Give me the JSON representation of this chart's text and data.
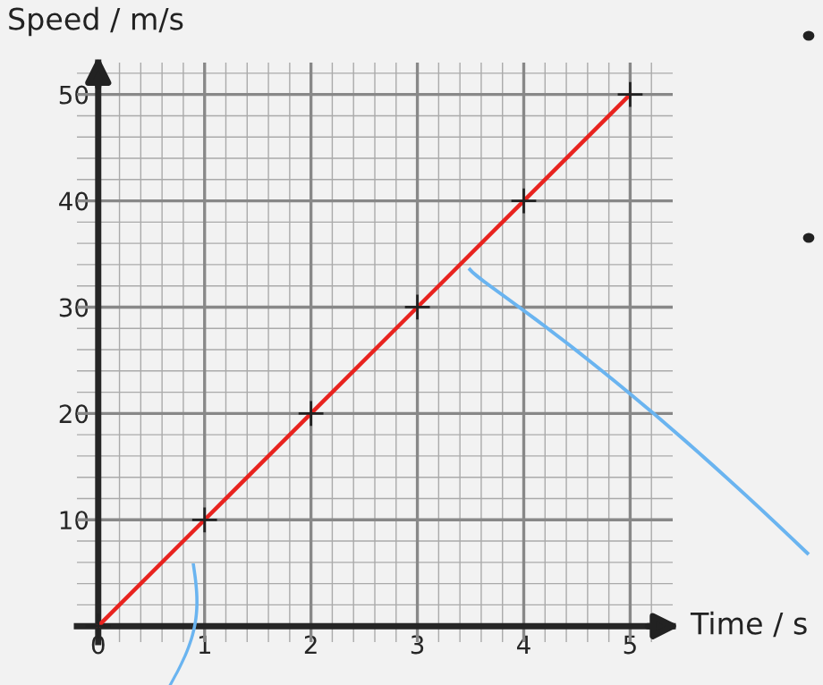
{
  "chart_data": {
    "type": "line",
    "xlabel": "Time / s",
    "ylabel": "Speed / m/s",
    "x": [
      0,
      1,
      2,
      3,
      4,
      5
    ],
    "series": [
      {
        "color": "#e8231f",
        "values": [
          0,
          10,
          20,
          30,
          40,
          50
        ]
      }
    ],
    "xlim": [
      -0.2,
      5.4
    ],
    "ylim": [
      -1.5,
      53
    ],
    "xticks": [
      0,
      1,
      2,
      3,
      4,
      5
    ],
    "yticks": [
      10,
      20,
      30,
      40,
      50
    ],
    "grid": true,
    "marker": "cross",
    "line_style": "solid"
  }
}
